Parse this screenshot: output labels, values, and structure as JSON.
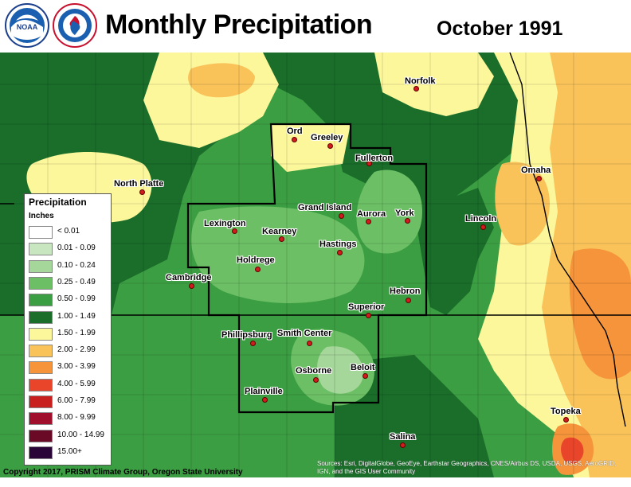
{
  "header": {
    "title": "Monthly Precipitation",
    "date": "October 1991",
    "logos": [
      "noaa-logo-icon",
      "nws-logo-icon"
    ]
  },
  "legend": {
    "title": "Precipitation",
    "units": "Inches",
    "items": [
      {
        "label": "< 0.01",
        "color": "#ffffff"
      },
      {
        "label": "0.01 - 0.09",
        "color": "#c8e6c0"
      },
      {
        "label": "0.10 - 0.24",
        "color": "#a5d69a"
      },
      {
        "label": "0.25 - 0.49",
        "color": "#6cbf64"
      },
      {
        "label": "0.50 - 0.99",
        "color": "#3c9e42"
      },
      {
        "label": "1.00 - 1.49",
        "color": "#1a6e2a"
      },
      {
        "label": "1.50 - 1.99",
        "color": "#fdf79c"
      },
      {
        "label": "2.00 - 2.99",
        "color": "#f9c35a"
      },
      {
        "label": "3.00 - 3.99",
        "color": "#f5943b"
      },
      {
        "label": "4.00 - 5.99",
        "color": "#e8452b"
      },
      {
        "label": "6.00 - 7.99",
        "color": "#c8201e"
      },
      {
        "label": "8.00 - 9.99",
        "color": "#a0102c"
      },
      {
        "label": "10.00 - 14.99",
        "color": "#6a0a26"
      },
      {
        "label": "15.00+",
        "color": "#2a0638"
      }
    ]
  },
  "cities": [
    {
      "name": "Norfolk",
      "key": "norfolk"
    },
    {
      "name": "Ord",
      "key": "ord"
    },
    {
      "name": "Greeley",
      "key": "greeley"
    },
    {
      "name": "Fullerton",
      "key": "fullerton"
    },
    {
      "name": "Omaha",
      "key": "omaha"
    },
    {
      "name": "North Platte",
      "key": "north-platte"
    },
    {
      "name": "Grand Island",
      "key": "grand-island"
    },
    {
      "name": "Aurora",
      "key": "aurora"
    },
    {
      "name": "York",
      "key": "york"
    },
    {
      "name": "Lincoln",
      "key": "lincoln"
    },
    {
      "name": "Lexington",
      "key": "lexington"
    },
    {
      "name": "Kearney",
      "key": "kearney"
    },
    {
      "name": "Hastings",
      "key": "hastings"
    },
    {
      "name": "Holdrege",
      "key": "holdrege"
    },
    {
      "name": "Cambridge",
      "key": "cambridge"
    },
    {
      "name": "Hebron",
      "key": "hebron"
    },
    {
      "name": "Superior",
      "key": "superior"
    },
    {
      "name": "Phillipsburg",
      "key": "phillipsburg"
    },
    {
      "name": "Smith Center",
      "key": "smith-center"
    },
    {
      "name": "Beloit",
      "key": "beloit"
    },
    {
      "name": "Osborne",
      "key": "osborne"
    },
    {
      "name": "Plainville",
      "key": "plainville"
    },
    {
      "name": "Topeka",
      "key": "topeka"
    },
    {
      "name": "Salina",
      "key": "salina"
    }
  ],
  "footer": {
    "copyright": "Copyright 2017, PRISM Climate Group, Oregon State University",
    "credits": "Sources: Esri, DigitalGlobe, GeoEye, Earthstar Geographics, CNES/Airbus DS, USDA, USGS, AeroGRID, IGN, and the GIS User Community"
  }
}
